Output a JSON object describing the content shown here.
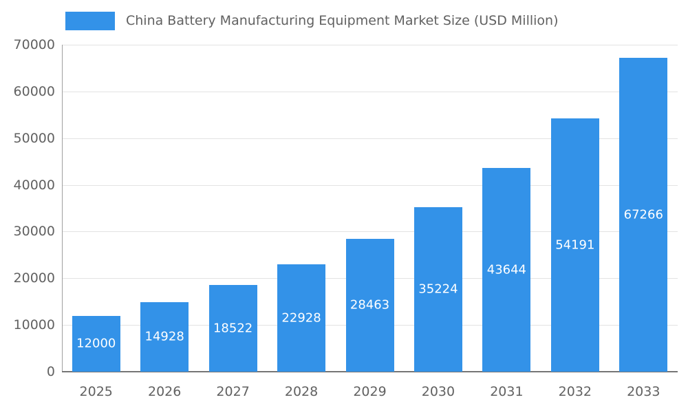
{
  "accent_color": "#3392e8",
  "chart_data": {
    "type": "bar",
    "title": "China Battery Manufacturing Equipment Market Size (USD Million)",
    "categories": [
      "2025",
      "2026",
      "2027",
      "2028",
      "2029",
      "2030",
      "2031",
      "2032",
      "2033"
    ],
    "values": [
      12000,
      14928,
      18522,
      22928,
      28463,
      35224,
      43644,
      54191,
      67266
    ],
    "xlabel": "",
    "ylabel": "",
    "ylim": [
      0,
      70000
    ],
    "ytick_step": 10000,
    "ytick_labels": [
      "0",
      "10000",
      "20000",
      "30000",
      "40000",
      "50000",
      "60000",
      "70000"
    ],
    "grid": "horizontal",
    "legend_position": "top-left",
    "bar_color": "#3392e8",
    "value_label_color": "#ffffff"
  }
}
